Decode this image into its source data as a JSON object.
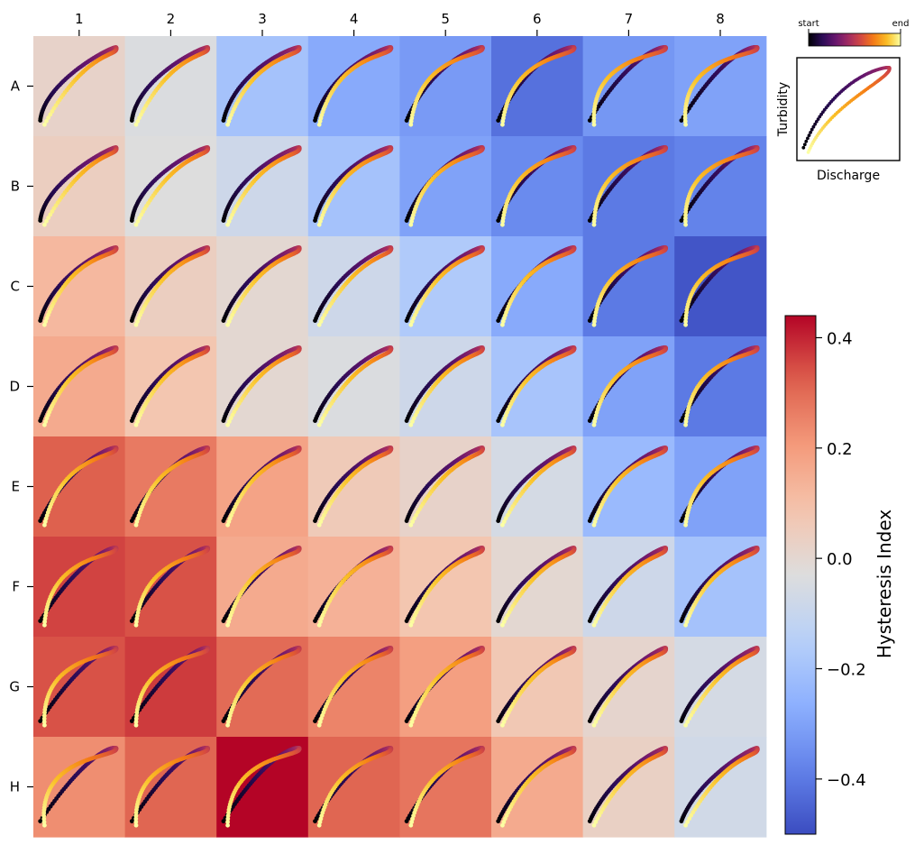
{
  "chart_data": {
    "type": "heatmap",
    "title": "",
    "col_labels": [
      "1",
      "2",
      "3",
      "4",
      "5",
      "6",
      "7",
      "8"
    ],
    "row_labels": [
      "A",
      "B",
      "C",
      "D",
      "E",
      "F",
      "G",
      "H"
    ],
    "hysteresis_index": [
      [
        0.02,
        -0.04,
        -0.2,
        -0.28,
        -0.32,
        -0.42,
        -0.33,
        -0.3
      ],
      [
        0.04,
        -0.03,
        -0.08,
        -0.2,
        -0.3,
        -0.36,
        -0.4,
        -0.38
      ],
      [
        0.12,
        0.04,
        0.0,
        -0.08,
        -0.17,
        -0.28,
        -0.4,
        -0.48
      ],
      [
        0.16,
        0.08,
        0.0,
        -0.04,
        -0.08,
        -0.19,
        -0.3,
        -0.4
      ],
      [
        0.32,
        0.27,
        0.18,
        0.06,
        0.02,
        -0.06,
        -0.23,
        -0.3
      ],
      [
        0.36,
        0.34,
        0.16,
        0.14,
        0.08,
        0.0,
        -0.08,
        -0.2
      ],
      [
        0.34,
        0.37,
        0.3,
        0.25,
        0.19,
        0.07,
        0.01,
        -0.06
      ],
      [
        0.23,
        0.31,
        0.44,
        0.31,
        0.28,
        0.16,
        0.03,
        -0.07
      ]
    ],
    "colorbar": {
      "label": "Hysteresis Index",
      "colormap": "coolwarm",
      "range": [
        -0.5,
        0.44
      ],
      "ticks": [
        0.4,
        0.2,
        0.0,
        -0.2,
        -0.4
      ],
      "tick_labels": [
        "0.4",
        "0.2",
        "0.0",
        "−0.2",
        "−0.4"
      ]
    },
    "loop_colormap": "inferno",
    "legend": {
      "start_label": "start",
      "end_label": "end",
      "xlabel": "Discharge",
      "ylabel": "Turbidity",
      "placement": "top-right"
    },
    "loop_params": [
      [
        [
          0.1,
          0.55,
          0.6,
          0.95
        ],
        [
          0.12,
          0.6,
          0.52,
          0.93
        ],
        [
          0.2,
          0.7,
          0.4,
          0.9
        ],
        [
          0.22,
          0.7,
          0.3,
          0.9
        ],
        [
          0.35,
          0.78,
          0.2,
          0.9
        ],
        [
          0.4,
          0.85,
          0.2,
          0.9
        ],
        [
          0.5,
          0.85,
          0.05,
          0.9
        ],
        [
          0.55,
          0.9,
          0.02,
          0.9
        ]
      ],
      [
        [
          0.1,
          0.55,
          0.6,
          0.95
        ],
        [
          0.12,
          0.6,
          0.55,
          0.93
        ],
        [
          0.18,
          0.65,
          0.48,
          0.92
        ],
        [
          0.22,
          0.7,
          0.38,
          0.9
        ],
        [
          0.3,
          0.75,
          0.28,
          0.9
        ],
        [
          0.35,
          0.78,
          0.18,
          0.9
        ],
        [
          0.45,
          0.82,
          0.12,
          0.9
        ],
        [
          0.5,
          0.85,
          0.05,
          0.9
        ]
      ],
      [
        [
          0.2,
          0.65,
          0.4,
          0.92
        ],
        [
          0.22,
          0.65,
          0.45,
          0.92
        ],
        [
          0.28,
          0.68,
          0.5,
          0.92
        ],
        [
          0.3,
          0.7,
          0.55,
          0.92
        ],
        [
          0.3,
          0.7,
          0.45,
          0.92
        ],
        [
          0.35,
          0.75,
          0.32,
          0.9
        ],
        [
          0.4,
          0.8,
          0.18,
          0.9
        ],
        [
          0.45,
          0.85,
          0.1,
          0.88
        ]
      ],
      [
        [
          0.28,
          0.7,
          0.4,
          0.92
        ],
        [
          0.3,
          0.72,
          0.45,
          0.92
        ],
        [
          0.25,
          0.68,
          0.52,
          0.93
        ],
        [
          0.3,
          0.7,
          0.55,
          0.92
        ],
        [
          0.3,
          0.7,
          0.5,
          0.92
        ],
        [
          0.35,
          0.75,
          0.38,
          0.9
        ],
        [
          0.4,
          0.82,
          0.25,
          0.9
        ],
        [
          0.45,
          0.85,
          0.18,
          0.9
        ]
      ],
      [
        [
          0.4,
          0.78,
          0.3,
          0.9
        ],
        [
          0.4,
          0.78,
          0.32,
          0.9
        ],
        [
          0.35,
          0.72,
          0.4,
          0.9
        ],
        [
          0.3,
          0.7,
          0.5,
          0.92
        ],
        [
          0.25,
          0.65,
          0.55,
          0.92
        ],
        [
          0.2,
          0.6,
          0.55,
          0.92
        ],
        [
          0.3,
          0.7,
          0.35,
          0.88
        ],
        [
          0.4,
          0.8,
          0.2,
          0.88
        ]
      ],
      [
        [
          0.5,
          0.82,
          0.15,
          0.9
        ],
        [
          0.48,
          0.8,
          0.18,
          0.9
        ],
        [
          0.4,
          0.72,
          0.35,
          0.92
        ],
        [
          0.38,
          0.72,
          0.4,
          0.92
        ],
        [
          0.35,
          0.7,
          0.45,
          0.92
        ],
        [
          0.25,
          0.62,
          0.55,
          0.93
        ],
        [
          0.3,
          0.65,
          0.5,
          0.9
        ],
        [
          0.3,
          0.7,
          0.4,
          0.88
        ]
      ],
      [
        [
          0.55,
          0.85,
          0.05,
          0.9
        ],
        [
          0.55,
          0.85,
          0.1,
          0.9
        ],
        [
          0.45,
          0.78,
          0.28,
          0.9
        ],
        [
          0.4,
          0.72,
          0.35,
          0.92
        ],
        [
          0.4,
          0.7,
          0.4,
          0.92
        ],
        [
          0.35,
          0.65,
          0.5,
          0.92
        ],
        [
          0.3,
          0.62,
          0.55,
          0.93
        ],
        [
          0.25,
          0.6,
          0.58,
          0.93
        ]
      ],
      [
        [
          0.6,
          0.9,
          0.0,
          0.88
        ],
        [
          0.55,
          0.88,
          0.05,
          0.9
        ],
        [
          0.55,
          0.88,
          0.1,
          0.9
        ],
        [
          0.45,
          0.8,
          0.28,
          0.9
        ],
        [
          0.45,
          0.8,
          0.3,
          0.9
        ],
        [
          0.35,
          0.72,
          0.45,
          0.92
        ],
        [
          0.3,
          0.65,
          0.55,
          0.93
        ],
        [
          0.25,
          0.6,
          0.58,
          0.93
        ]
      ]
    ]
  }
}
